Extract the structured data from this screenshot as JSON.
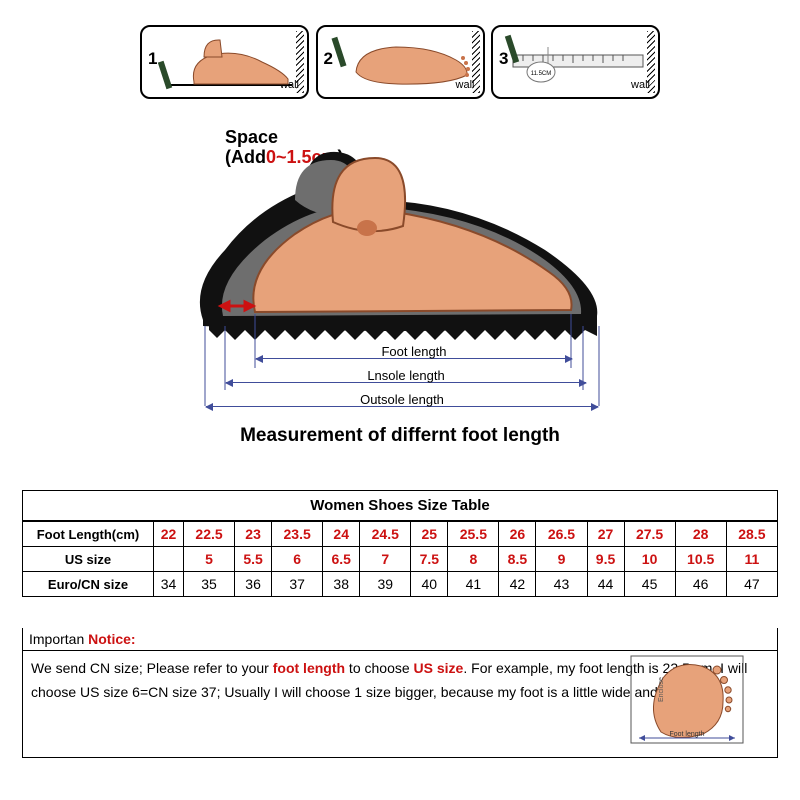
{
  "steps": {
    "wall_label": "wall",
    "nums": [
      "1",
      "2",
      "3"
    ],
    "ruler_value": "11.5CM"
  },
  "space_annotation": {
    "line1": "Space",
    "line2": "(Add",
    "range": "0~1.5cm",
    "close": ")"
  },
  "dims": {
    "foot": "Foot length",
    "insole": "Lnsole length",
    "outsole": "Outsole length"
  },
  "caption": "Measurement of differnt foot length",
  "table": {
    "title": "Women Shoes Size Table",
    "rows": [
      {
        "header": "Foot Length(cm)",
        "color": "red",
        "cells": [
          "22",
          "22.5",
          "23",
          "23.5",
          "24",
          "24.5",
          "25",
          "25.5",
          "26",
          "26.5",
          "27",
          "27.5",
          "28",
          "28.5"
        ]
      },
      {
        "header": "US size",
        "color": "red",
        "cells": [
          "",
          "5",
          "5.5",
          "6",
          "6.5",
          "7",
          "7.5",
          "8",
          "8.5",
          "9",
          "9.5",
          "10",
          "10.5",
          "11"
        ]
      },
      {
        "header": "Euro/CN size",
        "color": "black",
        "cells": [
          "34",
          "35",
          "36",
          "37",
          "38",
          "39",
          "40",
          "41",
          "42",
          "43",
          "44",
          "45",
          "46",
          "47"
        ]
      }
    ]
  },
  "notice": {
    "head_plain": "Importan",
    "head_accent": " Notice:",
    "text_pre": "We send CN size; Please refer to your ",
    "text_red": "foot length",
    "text_post": " to choose ",
    "text_red2": "US size",
    "text_tail": ". For example, my foot length is 23.5 cm, I will choose US size 6=CN size 37; Usually I will choose 1 size bigger, because my foot is a little wide and fat.",
    "foot_label1": "Enclose",
    "foot_label2": "Foot length"
  },
  "colors": {
    "skin": "#e7a27a",
    "skin_dark": "#c8734a",
    "shoe_black": "#111",
    "shoe_grey": "#6e6e6e",
    "red": "#cc1111",
    "arrow": "#404d9a"
  }
}
